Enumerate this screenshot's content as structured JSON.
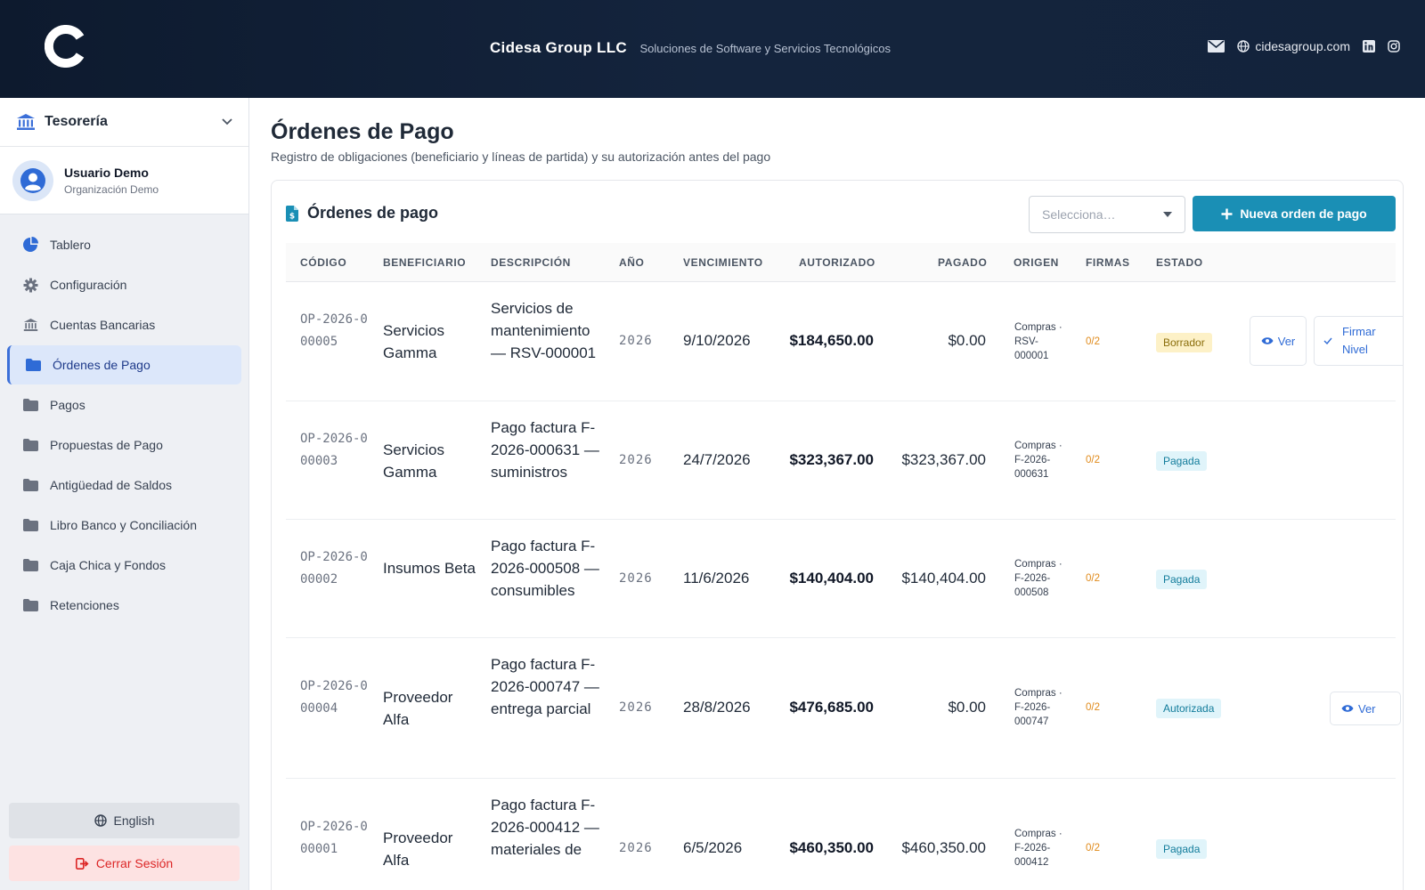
{
  "header": {
    "company": "Cidesa Group LLC",
    "tagline": "Soluciones de Software y Servicios Tecnológicos",
    "website": "cidesagroup.com"
  },
  "sidebar": {
    "module": "Tesorería",
    "user": {
      "name": "Usuario Demo",
      "org": "Organización Demo"
    },
    "items": [
      {
        "label": "Tablero",
        "icon": "pie-chart-icon",
        "active": false
      },
      {
        "label": "Configuración",
        "icon": "gear-icon",
        "active": false
      },
      {
        "label": "Cuentas Bancarias",
        "icon": "bank-icon",
        "active": false
      },
      {
        "label": "Órdenes de Pago",
        "icon": "folder-icon",
        "active": true
      },
      {
        "label": "Pagos",
        "icon": "folder-icon",
        "active": false
      },
      {
        "label": "Propuestas de Pago",
        "icon": "folder-icon",
        "active": false
      },
      {
        "label": "Antigüedad de Saldos",
        "icon": "folder-icon",
        "active": false
      },
      {
        "label": "Libro Banco y Conciliación",
        "icon": "folder-icon",
        "active": false
      },
      {
        "label": "Caja Chica y Fondos",
        "icon": "folder-icon",
        "active": false
      },
      {
        "label": "Retenciones",
        "icon": "folder-icon",
        "active": false
      }
    ],
    "language_label": "English",
    "logout_label": "Cerrar Sesión"
  },
  "main": {
    "title": "Órdenes de Pago",
    "subtitle": "Registro de obligaciones (beneficiario y líneas de partida) y su autorización antes del pago",
    "card_title": "Órdenes de pago",
    "select_placeholder": "Selecciona…",
    "new_button": "Nueva orden de pago",
    "columns": [
      "CÓDIGO",
      "BENEFICIARIO",
      "DESCRIPCIÓN",
      "AÑO",
      "VENCIMIENTO",
      "AUTORIZADO",
      "PAGADO",
      "ORIGEN",
      "FIRMAS",
      "ESTADO"
    ],
    "rows": [
      {
        "code": "OP-2026-000005",
        "beneficiary": "Servicios Gamma",
        "description": "Servicios de mantenimiento — RSV-000001",
        "year": "2026",
        "due": "9/10/2026",
        "authorized": "$184,650.00",
        "paid": "$0.00",
        "origin": "Compras · RSV-000001",
        "signatures": "0/2",
        "status": "Borrador",
        "actions": [
          "Ver",
          "Firmar Nivel"
        ]
      },
      {
        "code": "OP-2026-000003",
        "beneficiary": "Servicios Gamma",
        "description": "Pago factura F-2026-000631 — suministros",
        "year": "2026",
        "due": "24/7/2026",
        "authorized": "$323,367.00",
        "paid": "$323,367.00",
        "origin": "Compras · F-2026-000631",
        "signatures": "0/2",
        "status": "Pagada",
        "actions": []
      },
      {
        "code": "OP-2026-000002",
        "beneficiary": "Insumos Beta",
        "description": "Pago factura F-2026-000508 — consumibles",
        "year": "2026",
        "due": "11/6/2026",
        "authorized": "$140,404.00",
        "paid": "$140,404.00",
        "origin": "Compras · F-2026-000508",
        "signatures": "0/2",
        "status": "Pagada",
        "actions": []
      },
      {
        "code": "OP-2026-000004",
        "beneficiary": "Proveedor Alfa",
        "description": "Pago factura F-2026-000747 — entrega parcial",
        "year": "2026",
        "due": "28/8/2026",
        "authorized": "$476,685.00",
        "paid": "$0.00",
        "origin": "Compras · F-2026-000747",
        "signatures": "0/2",
        "status": "Autorizada",
        "actions": [
          "Ver"
        ]
      },
      {
        "code": "OP-2026-000001",
        "beneficiary": "Proveedor Alfa",
        "description": "Pago factura F-2026-000412 — materiales de",
        "year": "2026",
        "due": "6/5/2026",
        "authorized": "$460,350.00",
        "paid": "$460,350.00",
        "origin": "Compras · F-2026-000412",
        "signatures": "0/2",
        "status": "Pagada",
        "actions": []
      }
    ]
  },
  "colors": {
    "accent": "#1a8fb5",
    "active_nav": "#dce7fa",
    "header_bg": "#0d1a2e"
  }
}
